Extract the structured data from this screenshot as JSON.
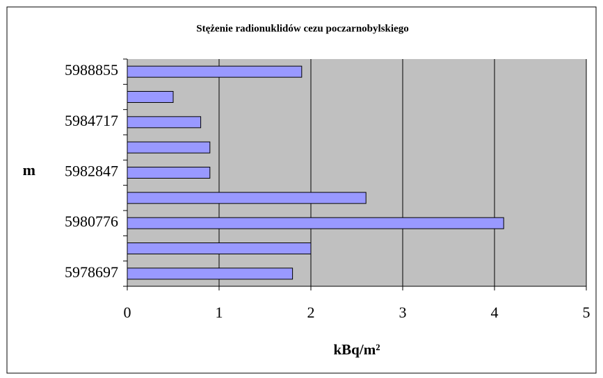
{
  "chart_data": {
    "type": "barh",
    "title": "Stężenie radionuklidów cezu poczarnobylskiego",
    "x_label": "kBq/m²",
    "y_label": "m",
    "categories": [
      "5978697",
      null,
      "5980776",
      null,
      "5982847",
      null,
      "5984717",
      null,
      "5988855"
    ],
    "values": [
      1.8,
      2.0,
      4.1,
      2.6,
      0.9,
      0.9,
      0.8,
      0.5,
      1.9
    ],
    "color": "#9999ff",
    "xlim": [
      0,
      5
    ],
    "xticks": [
      0,
      1,
      2,
      3,
      4,
      5
    ],
    "grid": true
  }
}
